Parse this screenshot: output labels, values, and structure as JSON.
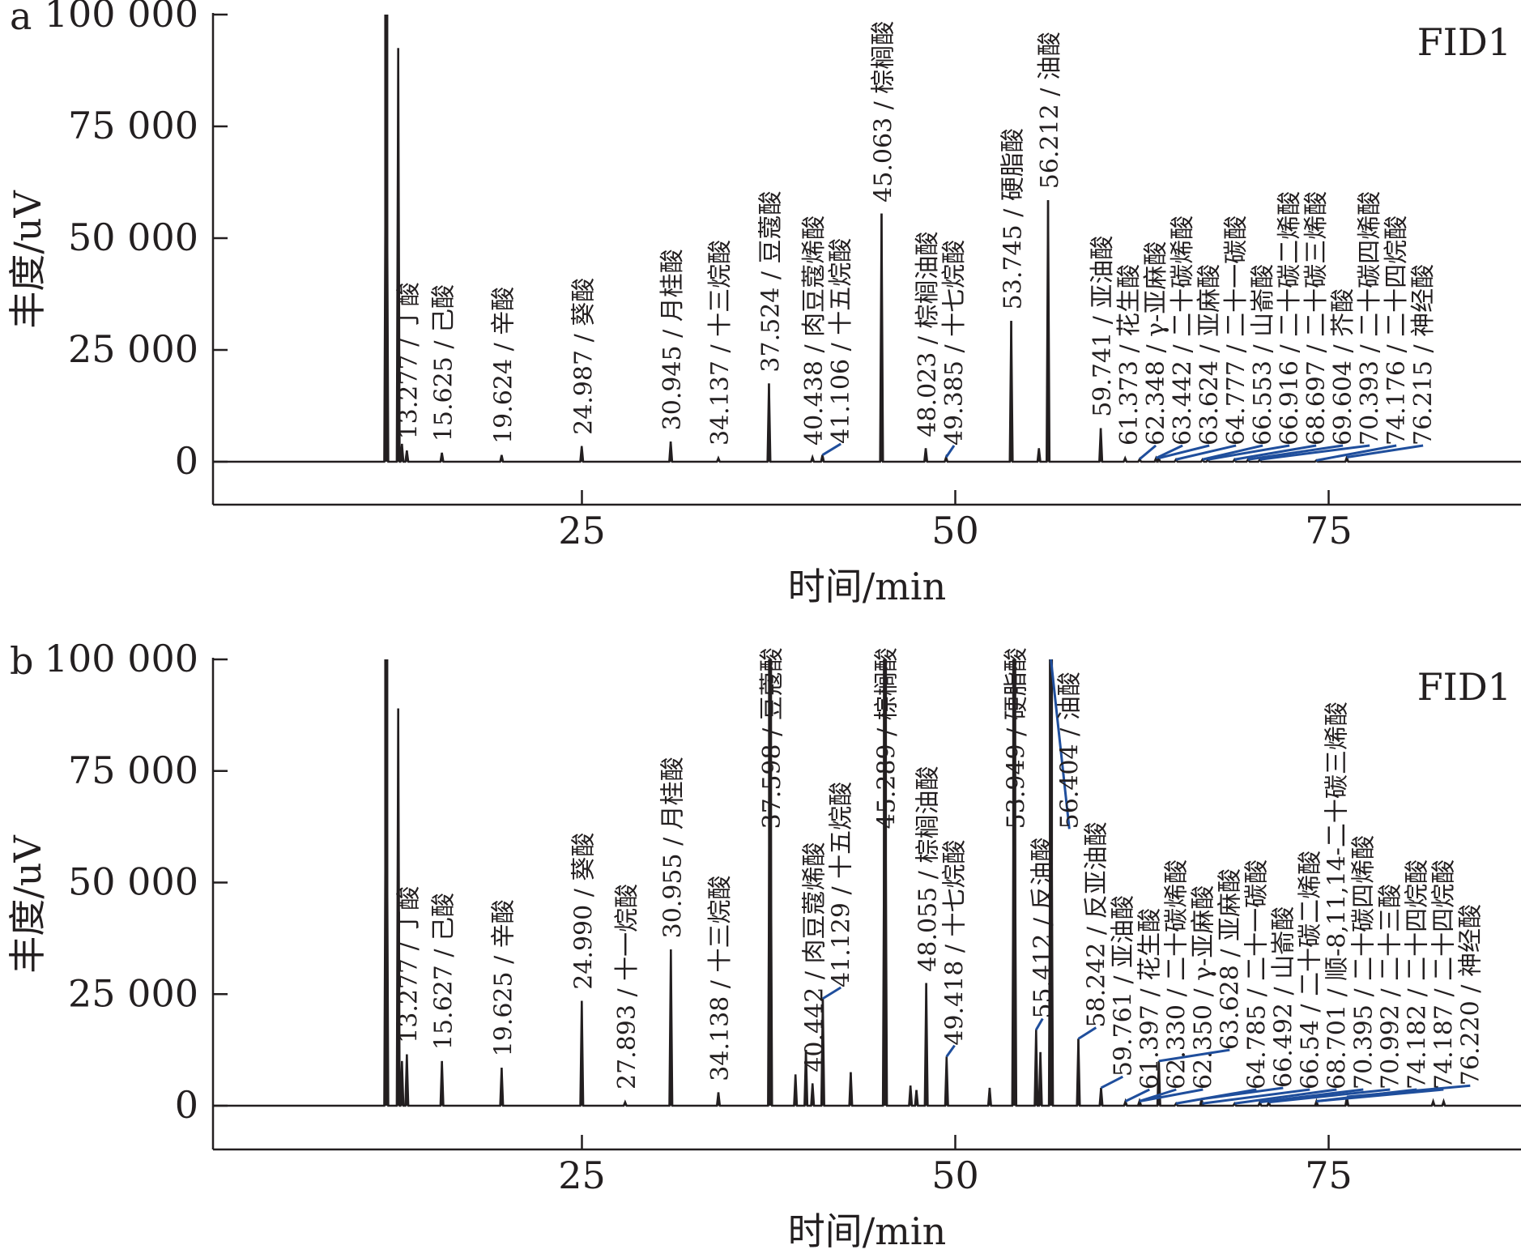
{
  "chart_data": [
    {
      "type": "line",
      "panel_label": "a",
      "detector": "FID1",
      "xlabel": "时间/min",
      "ylabel": "丰度/uV",
      "xlim": [
        0,
        88
      ],
      "ylim": [
        -10000,
        100000
      ],
      "xticks": [
        25,
        50,
        75
      ],
      "yticks": [
        0,
        25000,
        50000,
        75000,
        100000
      ],
      "ytick_labels": [
        "0",
        "25 000",
        "50 000",
        "75 000",
        "100 000"
      ],
      "grid": false,
      "line_color": "#231f20",
      "leader_color": "#1f4e9c",
      "peaks": [
        {
          "t": 11.9,
          "h": 100000
        },
        {
          "t": 12.7,
          "h": 92500
        },
        {
          "t": 12.95,
          "h": 4000
        },
        {
          "t": 13.277,
          "h": 2500,
          "label": "13.277 / 丁酸"
        },
        {
          "t": 15.625,
          "h": 2000,
          "label": "15.625 / 己酸"
        },
        {
          "t": 19.624,
          "h": 1500,
          "label": "19.624 / 辛酸"
        },
        {
          "t": 24.987,
          "h": 3500,
          "label": "24.987 / 葵酸"
        },
        {
          "t": 30.945,
          "h": 4500,
          "label": "30.945 / 月桂酸"
        },
        {
          "t": 34.137,
          "h": 800,
          "label": "34.137 / 十三烷酸"
        },
        {
          "t": 37.524,
          "h": 17500,
          "label": "37.524 / 豆蔻酸"
        },
        {
          "t": 40.438,
          "h": 1000,
          "label": "40.438 / 肉豆蔻烯酸"
        },
        {
          "t": 41.106,
          "h": 1500,
          "label": "41.106 / 十五烷酸"
        },
        {
          "t": 45.063,
          "h": 55500,
          "label": "45.063 / 棕榈酸"
        },
        {
          "t": 48.023,
          "h": 3000,
          "label": "48.023 / 棕榈油酸"
        },
        {
          "t": 49.385,
          "h": 1000,
          "label": "49.385 / 十七烷酸"
        },
        {
          "t": 53.745,
          "h": 31500,
          "label": "53.745 / 硬脂酸"
        },
        {
          "t": 55.6,
          "h": 3000
        },
        {
          "t": 56.212,
          "h": 58500,
          "label": "56.212 / 油酸"
        },
        {
          "t": 59.741,
          "h": 7500,
          "label": "59.741 / 亚油酸"
        },
        {
          "t": 61.373,
          "h": 800,
          "label": "61.373 / 花生酸"
        },
        {
          "t": 62.348,
          "h": 600,
          "label": "62.348 / γ-亚麻酸"
        },
        {
          "t": 63.442,
          "h": 800,
          "label": "63.442 / 二十碳烯酸"
        },
        {
          "t": 63.624,
          "h": 800,
          "label": "63.624 / 亚麻酸"
        },
        {
          "t": 64.777,
          "h": 500,
          "label": "64.777 / 二十一碳酸"
        },
        {
          "t": 66.553,
          "h": 500,
          "label": "66.553 / 山嵛酸"
        },
        {
          "t": 66.916,
          "h": 500,
          "label": "66.916 / 二十碳二烯酸"
        },
        {
          "t": 68.697,
          "h": 500,
          "label": "68.697 / 二十碳三烯酸"
        },
        {
          "t": 69.604,
          "h": 500,
          "label": "69.604 / 芥酸"
        },
        {
          "t": 70.393,
          "h": 500,
          "label": "70.393 / 二十碳四烯酸"
        },
        {
          "t": 74.176,
          "h": 300,
          "label": "74.176 / 二十四烷酸"
        },
        {
          "t": 76.215,
          "h": 1000,
          "label": "76.215 / 神经酸"
        }
      ]
    },
    {
      "type": "line",
      "panel_label": "b",
      "detector": "FID1",
      "xlabel": "时间/min",
      "ylabel": "丰度/uV",
      "xlim": [
        0,
        88
      ],
      "ylim": [
        -10000,
        100000
      ],
      "xticks": [
        25,
        50,
        75
      ],
      "yticks": [
        0,
        25000,
        50000,
        75000,
        100000
      ],
      "ytick_labels": [
        "0",
        "25 000",
        "50 000",
        "75 000",
        "100 000"
      ],
      "grid": false,
      "line_color": "#231f20",
      "leader_color": "#1f4e9c",
      "peaks": [
        {
          "t": 11.9,
          "h": 100000
        },
        {
          "t": 12.7,
          "h": 89000
        },
        {
          "t": 12.95,
          "h": 10000
        },
        {
          "t": 13.277,
          "h": 11500,
          "label": "13.277 / 丁酸"
        },
        {
          "t": 15.627,
          "h": 10000,
          "label": "15.627 / 己酸"
        },
        {
          "t": 19.625,
          "h": 8500,
          "label": "19.625 / 辛酸"
        },
        {
          "t": 24.99,
          "h": 23500,
          "label": "24.990 / 葵酸"
        },
        {
          "t": 27.893,
          "h": 800,
          "label": "27.893 / 十一烷酸"
        },
        {
          "t": 30.955,
          "h": 35000,
          "label": "30.955 / 月桂酸"
        },
        {
          "t": 34.138,
          "h": 3000,
          "label": "34.138 / 十三烷酸"
        },
        {
          "t": 37.598,
          "h": 100000,
          "label": "37.598 / 豆蔻酸"
        },
        {
          "t": 39.3,
          "h": 7000
        },
        {
          "t": 40.0,
          "h": 12500
        },
        {
          "t": 40.442,
          "h": 5000,
          "label": "40.442 / 肉豆蔻烯酸"
        },
        {
          "t": 41.129,
          "h": 24000,
          "label": "41.129 / 十五烷酸"
        },
        {
          "t": 43.0,
          "h": 7500
        },
        {
          "t": 45.289,
          "h": 100000,
          "label": "45.289 / 棕榈酸"
        },
        {
          "t": 47.0,
          "h": 4500
        },
        {
          "t": 47.4,
          "h": 3500
        },
        {
          "t": 48.055,
          "h": 27500,
          "label": "48.055 / 棕榈油酸"
        },
        {
          "t": 49.418,
          "h": 11000,
          "label": "49.418 / 十七烷酸"
        },
        {
          "t": 52.3,
          "h": 4000
        },
        {
          "t": 53.949,
          "h": 100000,
          "label": "53.949 / 硬脂酸"
        },
        {
          "t": 55.412,
          "h": 17000,
          "label": "55.412 / 反油酸"
        },
        {
          "t": 55.7,
          "h": 12000
        },
        {
          "t": 56.404,
          "h": 100000,
          "label": "56.404 / 油酸"
        },
        {
          "t": 58.242,
          "h": 15000,
          "label": "58.242 / 反亚油酸"
        },
        {
          "t": 59.761,
          "h": 4000,
          "label": "59.761 / 亚油酸"
        },
        {
          "t": 61.397,
          "h": 1000,
          "label": "61.397 / 花生酸"
        },
        {
          "t": 62.33,
          "h": 1000,
          "label": "62.330 / 二十碳烯酸"
        },
        {
          "t": 62.35,
          "h": 1000,
          "label": "62.350 / γ-亚麻酸"
        },
        {
          "t": 63.628,
          "h": 10000,
          "label": "63.628 / 亚麻酸"
        },
        {
          "t": 64.785,
          "h": 500,
          "label": "64.785 / 二十一碳酸"
        },
        {
          "t": 66.492,
          "h": 1500,
          "label": "66.492 / 山嵛酸"
        },
        {
          "t": 66.54,
          "h": 500,
          "label": "66.54 / 二十碳二烯酸"
        },
        {
          "t": 68.701,
          "h": 500,
          "label": "68.701 / 顺-8,11,14-二十碳三烯酸"
        },
        {
          "t": 70.395,
          "h": 800,
          "label": "70.395 / 二十碳四烯酸"
        },
        {
          "t": 70.992,
          "h": 800,
          "label": "70.992 / 二十三酸"
        },
        {
          "t": 74.182,
          "h": 1000,
          "label": "74.182 / 二十四烷酸"
        },
        {
          "t": 74.187,
          "h": 1000,
          "label": "74.187 / 二十四烷酸"
        },
        {
          "t": 76.22,
          "h": 2000,
          "label": "76.220 / 神经酸"
        },
        {
          "t": 82.0,
          "h": 1000
        },
        {
          "t": 82.7,
          "h": 1000
        }
      ]
    }
  ]
}
